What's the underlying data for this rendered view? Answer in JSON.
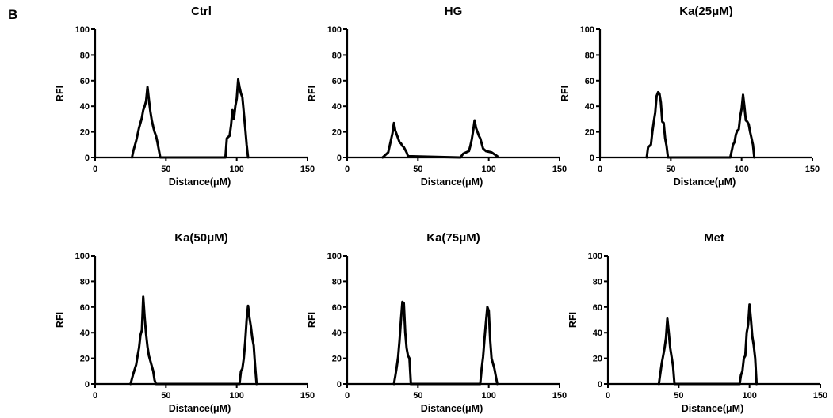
{
  "panel_label": "B",
  "chart_data": [
    {
      "type": "line",
      "title": "Ctrl",
      "xlabel": "Distance(μM)",
      "ylabel": "RFI",
      "xlim": [
        0,
        150
      ],
      "ylim": [
        0,
        100
      ],
      "xticks": [
        0,
        50,
        100,
        150
      ],
      "yticks": [
        0,
        20,
        40,
        60,
        80,
        100
      ],
      "x": [
        26,
        27,
        29,
        31,
        33,
        34,
        35,
        36,
        37,
        38,
        39,
        40,
        41,
        42,
        43,
        44,
        45,
        46,
        92,
        93,
        95,
        96,
        97,
        98,
        99,
        100,
        101,
        102,
        103,
        104,
        105,
        106,
        107,
        108
      ],
      "y": [
        0,
        5,
        13,
        23,
        31,
        37,
        40,
        44,
        55,
        45,
        36,
        29,
        24,
        20,
        17,
        12,
        6,
        0,
        0,
        15,
        17,
        25,
        37,
        30,
        40,
        46,
        61,
        55,
        50,
        47,
        35,
        23,
        10,
        0
      ]
    },
    {
      "type": "line",
      "title": "HG",
      "xlabel": "Distance(μM)",
      "ylabel": "RFI",
      "xlim": [
        0,
        150
      ],
      "ylim": [
        0,
        100
      ],
      "xticks": [
        0,
        50,
        100,
        150
      ],
      "yticks": [
        0,
        20,
        40,
        60,
        80,
        100
      ],
      "x": [
        25,
        27,
        29,
        30,
        31,
        32,
        33,
        34,
        35,
        36,
        37,
        38,
        39,
        40,
        41,
        42,
        43,
        80,
        82,
        84,
        86,
        87,
        88,
        89,
        90,
        91,
        92,
        93,
        94,
        95,
        96,
        98,
        102,
        106
      ],
      "y": [
        0,
        2,
        4,
        9,
        14,
        19,
        27,
        21,
        18,
        15,
        12,
        11,
        9,
        8,
        6,
        4,
        1,
        0,
        3,
        4,
        5,
        9,
        14,
        21,
        29,
        23,
        20,
        17,
        15,
        11,
        7,
        5,
        4,
        1
      ]
    },
    {
      "type": "line",
      "title": "Ka(25μM)",
      "xlabel": "Distance(μM)",
      "ylabel": "RFI",
      "xlim": [
        0,
        150
      ],
      "ylim": [
        0,
        100
      ],
      "xticks": [
        0,
        50,
        100,
        150
      ],
      "yticks": [
        0,
        20,
        40,
        60,
        80,
        100
      ],
      "x": [
        33,
        34,
        35,
        36,
        37,
        38,
        39,
        40,
        41,
        42,
        43,
        44,
        45,
        46,
        47,
        48,
        92,
        94,
        95,
        96,
        97,
        98,
        99,
        100,
        101,
        102,
        103,
        104,
        105,
        106,
        107,
        108,
        109
      ],
      "y": [
        0,
        8,
        9,
        10,
        20,
        28,
        35,
        48,
        51,
        50,
        43,
        28,
        27,
        15,
        9,
        0,
        0,
        10,
        12,
        18,
        21,
        22,
        32,
        38,
        49,
        40,
        29,
        28,
        26,
        20,
        15,
        10,
        0
      ]
    },
    {
      "type": "line",
      "title": "Ka(50μM)",
      "xlabel": "Distance(μM)",
      "ylabel": "RFI",
      "xlim": [
        0,
        150
      ],
      "ylim": [
        0,
        100
      ],
      "xticks": [
        0,
        50,
        100,
        150
      ],
      "yticks": [
        0,
        20,
        40,
        60,
        80,
        100
      ],
      "x": [
        25,
        27,
        29,
        30,
        31,
        32,
        33,
        34,
        35,
        36,
        37,
        38,
        39,
        40,
        41,
        42,
        43,
        102,
        103,
        104,
        105,
        106,
        107,
        108,
        109,
        110,
        111,
        112,
        113,
        114
      ],
      "y": [
        0,
        8,
        15,
        22,
        28,
        38,
        42,
        68,
        52,
        39,
        29,
        22,
        18,
        14,
        10,
        3,
        0,
        0,
        10,
        12,
        20,
        33,
        50,
        61,
        52,
        45,
        36,
        30,
        14,
        0
      ]
    },
    {
      "type": "line",
      "title": "Ka(75μM)",
      "xlabel": "Distance(μM)",
      "ylabel": "RFI",
      "xlim": [
        0,
        150
      ],
      "ylim": [
        0,
        100
      ],
      "xticks": [
        0,
        50,
        100,
        150
      ],
      "yticks": [
        0,
        20,
        40,
        60,
        80,
        100
      ],
      "x": [
        33,
        34,
        35,
        36,
        37,
        38,
        39,
        40,
        41,
        42,
        43,
        44,
        45,
        94,
        95,
        96,
        97,
        98,
        99,
        100,
        101,
        102,
        103,
        104,
        105,
        106
      ],
      "y": [
        0,
        6,
        13,
        21,
        34,
        50,
        64,
        63,
        40,
        28,
        22,
        20,
        0,
        0,
        12,
        21,
        35,
        48,
        60,
        57,
        34,
        20,
        16,
        12,
        6,
        0
      ]
    },
    {
      "type": "line",
      "title": "Met",
      "xlabel": "Distance(μM)",
      "ylabel": "RFI",
      "xlim": [
        0,
        150
      ],
      "ylim": [
        0,
        100
      ],
      "xticks": [
        0,
        50,
        100,
        150
      ],
      "yticks": [
        0,
        20,
        40,
        60,
        80,
        100
      ],
      "x": [
        36,
        37,
        38,
        39,
        40,
        41,
        42,
        43,
        44,
        45,
        46,
        47,
        93,
        94,
        95,
        96,
        97,
        98,
        99,
        100,
        101,
        102,
        103,
        104,
        105
      ],
      "y": [
        0,
        8,
        16,
        22,
        28,
        36,
        51,
        40,
        28,
        21,
        14,
        0,
        0,
        7,
        10,
        20,
        22,
        40,
        46,
        62,
        50,
        37,
        30,
        20,
        0
      ]
    }
  ]
}
